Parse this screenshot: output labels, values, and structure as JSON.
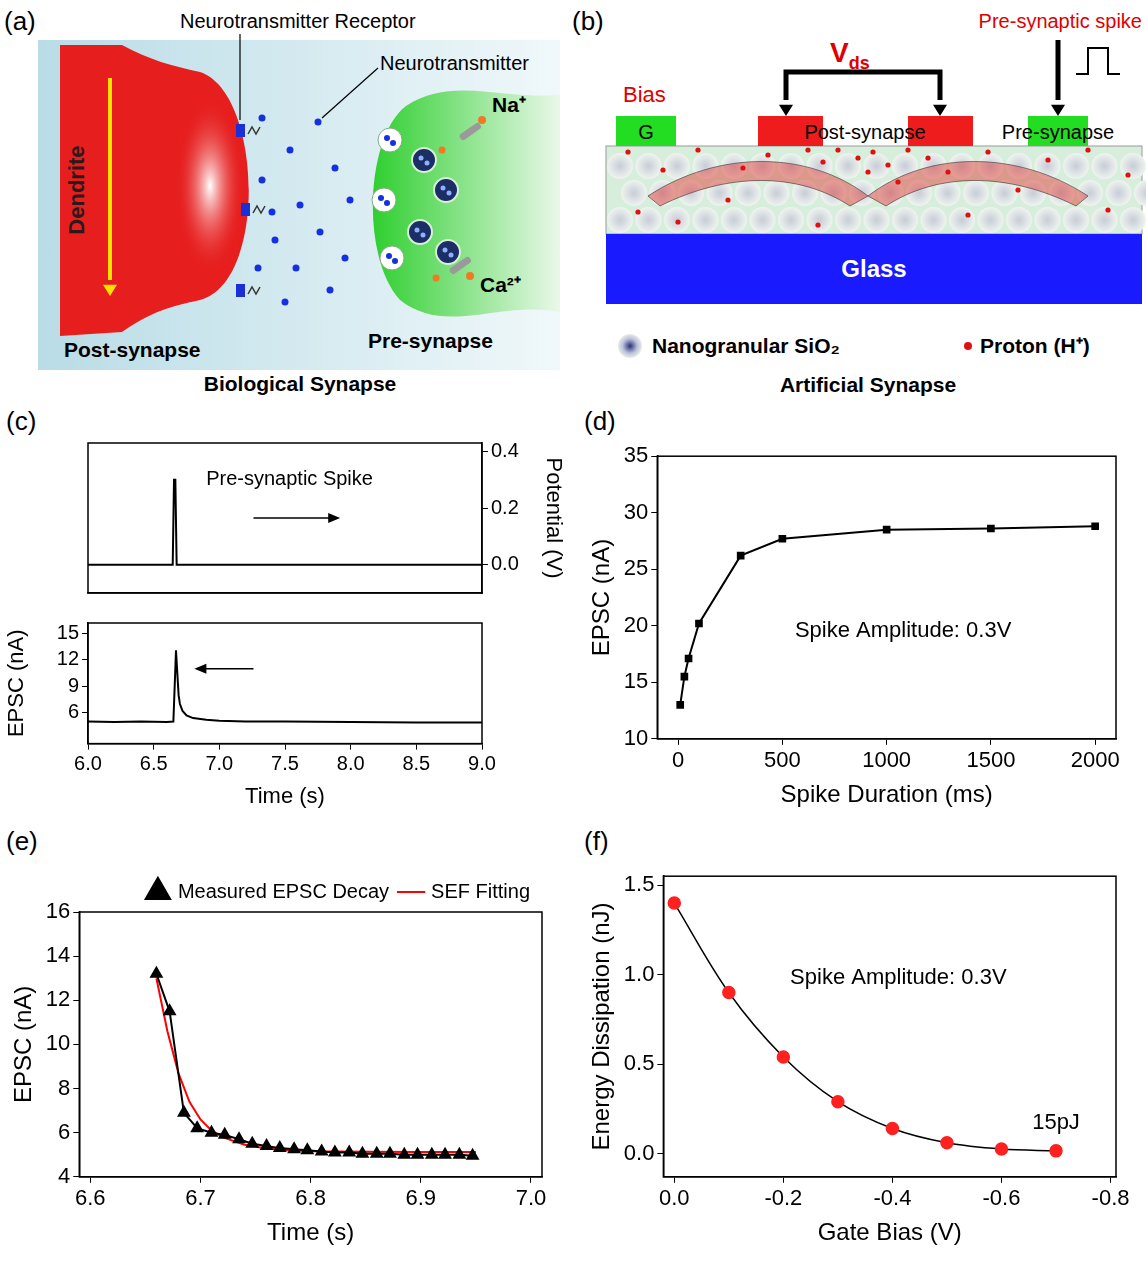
{
  "diagrams": {
    "a": {
      "panel": "(a)",
      "title": "Biological Synapse",
      "labels": {
        "receptor": "Neurotransmitter Receptor",
        "neurotransmitter": "Neurotransmitter",
        "sodium": "Na⁺",
        "calcium": "Ca²⁺",
        "dendrite": "Dendrite",
        "post": "Post-synapse",
        "pre": "Pre-synapse"
      }
    },
    "b": {
      "panel": "(b)",
      "title": "Artificial Synapse",
      "labels": {
        "bias": "Bias",
        "vds": {
          "text": "V",
          "subscript": "ds"
        },
        "spike": "Pre-synaptic spike",
        "gate": "G",
        "post": "Post-synapse",
        "pre": "Pre-synapse",
        "substrate": "Glass",
        "particle": "Nanogranular SiO₂",
        "proton": "Proton (H⁺)"
      }
    }
  },
  "chart_data": [
    {
      "panel": "(c)",
      "type": "line",
      "y_label": "Potential (V)",
      "xlim": [
        6.0,
        9.0
      ],
      "y2lim": [
        -0.1,
        0.43
      ],
      "y2ticks": [
        {
          "value": 0,
          "label": "0.0"
        },
        0.2,
        0.4
      ],
      "tick_labels": "y",
      "grid": false,
      "annotations": [
        "Pre-synaptic Spike"
      ],
      "series": [
        {
          "axis": "y2",
          "color": "#000000",
          "marker": "none",
          "line_style": "solid",
          "x": [
            6.0,
            6.645,
            6.655,
            6.665,
            6.675,
            9.0
          ],
          "values": [
            0,
            0,
            0.3,
            0.3,
            0,
            0
          ]
        }
      ]
    },
    {
      "type": "line",
      "x_label": "Time (s)",
      "y_label": "EPSC (nA)",
      "xlim": [
        6.0,
        9.0
      ],
      "ylim": [
        2.5,
        16.2
      ],
      "xticks": [
        {
          "value": 6,
          "label": "6.0"
        },
        6.5,
        {
          "value": 7,
          "label": "7.0"
        },
        7.5,
        {
          "value": 8,
          "label": "8.0"
        },
        8.5,
        {
          "value": 9,
          "label": "9.0"
        }
      ],
      "yticks": [
        6,
        9,
        12,
        15
      ],
      "grid": false,
      "series": [
        {
          "color": "#000000",
          "marker": "none",
          "line_style": "solid",
          "x": [
            6.0,
            6.2,
            6.4,
            6.6,
            6.65,
            6.66,
            6.67,
            6.68,
            6.69,
            6.7,
            6.72,
            6.75,
            6.8,
            6.9,
            7.0,
            7.2,
            7.5,
            8.0,
            8.5,
            9.0
          ],
          "values": [
            5.0,
            4.95,
            5.0,
            4.95,
            5.0,
            9.0,
            13.1,
            10.5,
            8.0,
            7.0,
            6.2,
            5.7,
            5.4,
            5.2,
            5.1,
            5.0,
            5.0,
            4.95,
            4.9,
            4.9
          ]
        }
      ]
    },
    {
      "panel": "(d)",
      "type": "line",
      "x_label": "Spike Duration (ms)",
      "y_label": "EPSC (nA)",
      "xlim": [
        -100,
        2100
      ],
      "ylim": [
        10,
        35
      ],
      "xticks": [
        0,
        500,
        1000,
        1500,
        2000
      ],
      "yticks": [
        10,
        15,
        20,
        25,
        30,
        35
      ],
      "grid": false,
      "annotations": [
        "Spike Amplitude: 0.3V"
      ],
      "x": [
        10,
        30,
        50,
        100,
        300,
        500,
        1000,
        1500,
        2000
      ],
      "series": [
        {
          "color": "#000000",
          "marker": "square",
          "line_style": "solid",
          "values": [
            13.0,
            15.5,
            17.1,
            20.2,
            26.2,
            27.7,
            28.5,
            28.6,
            28.8
          ]
        }
      ]
    },
    {
      "panel": "(e)",
      "type": "line",
      "x_label": "Time (s)",
      "y_label": "EPSC (nA)",
      "xlim": [
        6.59,
        7.01
      ],
      "ylim": [
        4,
        16
      ],
      "xticks": [
        6.6,
        6.7,
        6.8,
        6.9,
        {
          "value": 7,
          "label": "7.0"
        }
      ],
      "yticks": [
        4,
        6,
        8,
        10,
        12,
        14,
        16
      ],
      "grid": false,
      "legend": "top",
      "series": [
        {
          "name": "Measured EPSC Decay",
          "color": "#000000",
          "marker": "triangle",
          "line_style": "solid",
          "x": [
            6.66,
            6.672,
            6.685,
            6.697,
            6.71,
            6.722,
            6.735,
            6.747,
            6.76,
            6.772,
            6.785,
            6.797,
            6.81,
            6.822,
            6.835,
            6.847,
            6.86,
            6.872,
            6.885,
            6.897,
            6.91,
            6.922,
            6.935,
            6.947
          ],
          "values": [
            13.2,
            11.5,
            6.9,
            6.2,
            6.0,
            5.9,
            5.7,
            5.5,
            5.4,
            5.3,
            5.25,
            5.2,
            5.15,
            5.1,
            5.1,
            5.05,
            5.05,
            5.05,
            5.0,
            5.0,
            5.0,
            5.0,
            5.0,
            4.95
          ]
        },
        {
          "name": "SEF Fitting",
          "color": "#ff0000",
          "marker": "none",
          "line_style": "solid",
          "x": [
            6.66,
            6.67,
            6.68,
            6.69,
            6.7,
            6.71,
            6.72,
            6.74,
            6.76,
            6.78,
            6.8,
            6.85,
            6.9,
            6.95
          ],
          "values": [
            13.0,
            10.6,
            8.7,
            7.4,
            6.6,
            6.1,
            5.8,
            5.45,
            5.28,
            5.2,
            5.16,
            5.13,
            5.12,
            5.12
          ]
        }
      ]
    },
    {
      "panel": "(f)",
      "type": "line",
      "x_label": "Gate Bias (V)",
      "y_label": "Energy Dissipation (nJ)",
      "xlim": [
        0.02,
        -0.81
      ],
      "ylim": [
        -0.13,
        1.55
      ],
      "xticks": [
        {
          "value": 0,
          "label": "0.0"
        },
        -0.2,
        -0.4,
        -0.6,
        -0.8
      ],
      "yticks": [
        {
          "value": 0,
          "label": "0.0"
        },
        0.5,
        {
          "value": 1,
          "label": "1.0"
        },
        1.5
      ],
      "grid": false,
      "annotations": [
        "Spike Amplitude: 0.3V",
        "15pJ"
      ],
      "x": [
        0,
        -0.1,
        -0.2,
        -0.3,
        -0.4,
        -0.5,
        -0.6,
        -0.7
      ],
      "series": [
        {
          "color": "#ff2020",
          "marker": "circle",
          "line_style": "solid",
          "values": [
            1.4,
            0.9,
            0.54,
            0.29,
            0.14,
            0.06,
            0.025,
            0.015
          ]
        }
      ]
    }
  ]
}
